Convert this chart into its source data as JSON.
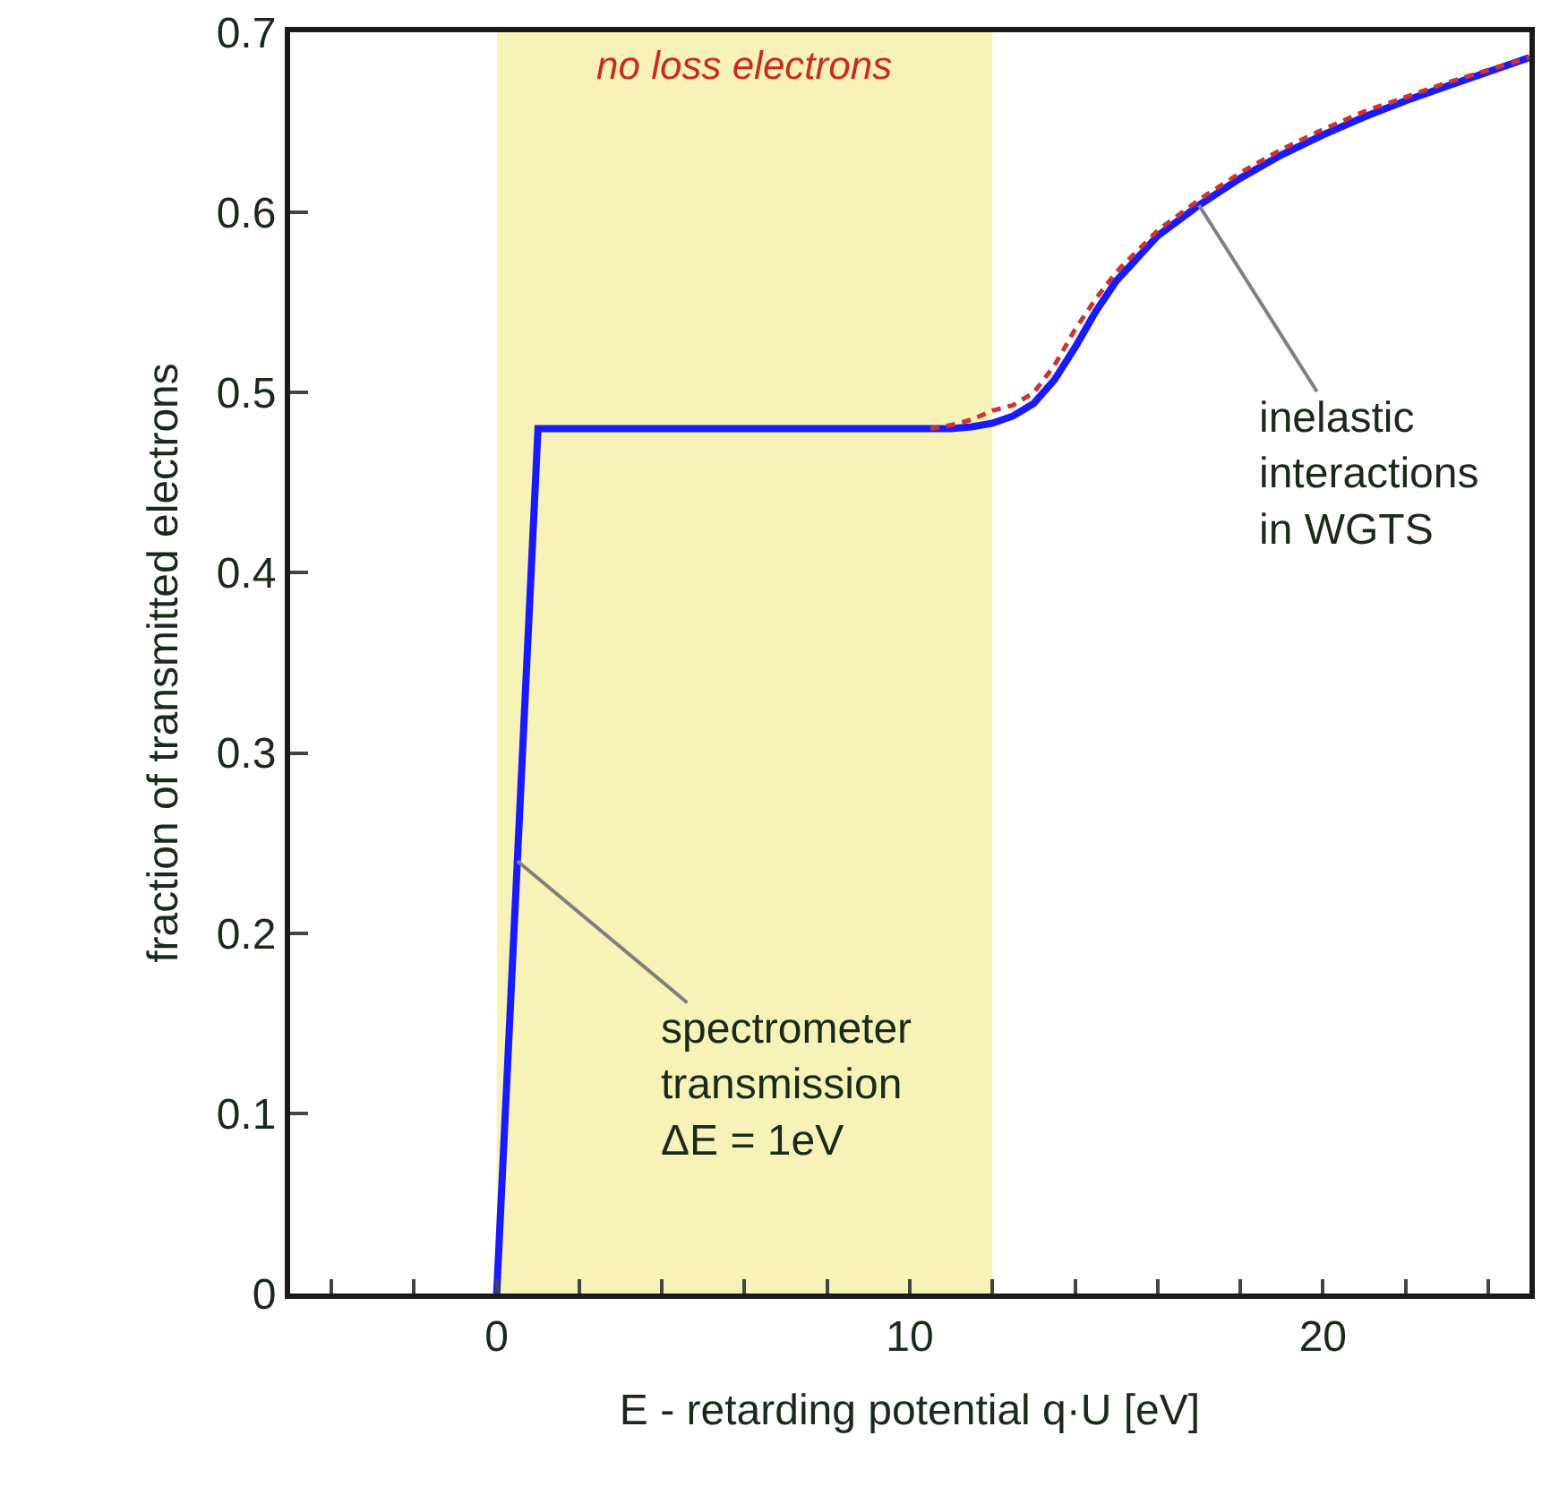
{
  "chart_data": {
    "type": "line",
    "xlabel": "E - retarding potential q·U [eV]",
    "ylabel": "fraction of transmitted electrons",
    "xlim": [
      -5,
      25
    ],
    "xticks": [
      {
        "value": -4,
        "label": null
      },
      {
        "value": -2,
        "label": null
      },
      0,
      {
        "value": 2,
        "label": null
      },
      {
        "value": 4,
        "label": null
      },
      {
        "value": 6,
        "label": null
      },
      {
        "value": 8,
        "label": null
      },
      10,
      {
        "value": 12,
        "label": null
      },
      {
        "value": 14,
        "label": null
      },
      {
        "value": 16,
        "label": null
      },
      {
        "value": 18,
        "label": null
      },
      20,
      {
        "value": 22,
        "label": null
      },
      {
        "value": 24,
        "label": null
      }
    ],
    "ylim": [
      0,
      0.7
    ],
    "yticks": [
      0,
      0.1,
      0.2,
      0.3,
      0.4,
      0.5,
      0.6,
      0.7
    ],
    "series": [
      {
        "color": "#1a1aff",
        "line_style": "solid",
        "x": [
          0,
          1,
          10,
          11,
          11.5,
          12,
          12.5,
          13,
          13.5,
          14,
          14.5,
          15,
          16,
          17,
          18,
          19,
          20,
          21,
          22,
          23,
          24,
          25
        ],
        "values": [
          0,
          0.48,
          0.48,
          0.48,
          0.481,
          0.483,
          0.487,
          0.494,
          0.507,
          0.525,
          0.545,
          0.562,
          0.587,
          0.604,
          0.619,
          0.632,
          0.643,
          0.653,
          0.662,
          0.67,
          0.678,
          0.686
        ]
      },
      {
        "color": "#cc3333",
        "line_style": "dashed",
        "x": [
          10.5,
          11,
          11.5,
          12,
          12.5,
          13,
          13.5,
          14,
          14.5,
          15,
          16,
          17,
          18,
          19,
          20,
          21,
          22,
          23,
          24,
          25
        ],
        "values": [
          0.48,
          0.482,
          0.485,
          0.49,
          0.493,
          0.5,
          0.515,
          0.535,
          0.552,
          0.567,
          0.59,
          0.607,
          0.622,
          0.635,
          0.646,
          0.656,
          0.664,
          0.672,
          0.679,
          0.686
        ]
      }
    ],
    "bands": [
      {
        "axis": "x",
        "from": 0,
        "to": 12,
        "label": "no loss electrons",
        "color": "#f7f3b8"
      }
    ],
    "annotations": [
      {
        "text": "inelastic\ninteractions\nin WGTS",
        "x": 17,
        "y": 0.604
      },
      {
        "text": "spectrometer\ntransmission\nΔE = 1eV",
        "x": 0.5,
        "y": 0.24
      }
    ],
    "grid": false,
    "marker": "none"
  }
}
